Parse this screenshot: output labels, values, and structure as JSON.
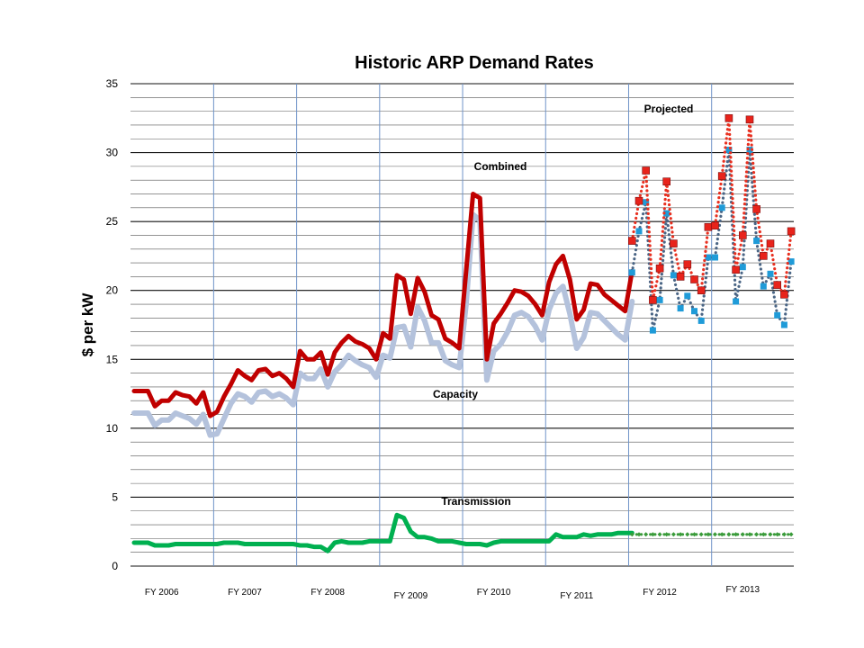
{
  "chart_data": {
    "type": "line",
    "title": "Historic ARP Demand Rates",
    "ylabel": "$ per kW",
    "xlabel": "",
    "ylim": [
      0,
      35
    ],
    "yticks": [
      0,
      5,
      10,
      15,
      20,
      25,
      30,
      35
    ],
    "grid": true,
    "fiscal_years": [
      "FY 2006",
      "FY 2007",
      "FY 2008",
      "FY 2009",
      "FY 2010",
      "FY 2011",
      "FY 2012",
      "FY 2013"
    ],
    "annotations": [
      "Combined",
      "Capacity",
      "Transmission",
      "Projected"
    ],
    "colors": {
      "combined": "#c00000",
      "capacity": "#b4c2dc",
      "transmission": "#00b050",
      "projected_combined": "#e8231b",
      "projected_capacity": "#1f9bd8",
      "projected_transmission": "#3a9b3a",
      "projected_combined_line": "#e83020",
      "projected_capacity_line": "#4a6585",
      "fy_lines": "#6f93c8",
      "grid": "#111111"
    },
    "series": [
      {
        "name": "Combined",
        "style": "solid",
        "x_start": 0,
        "values": [
          12.7,
          12.7,
          12.7,
          11.6,
          12.0,
          12.0,
          12.6,
          12.4,
          12.3,
          11.8,
          12.6,
          10.9,
          11.2,
          12.3,
          13.2,
          14.2,
          13.8,
          13.5,
          14.2,
          14.3,
          13.8,
          14.0,
          13.6,
          13.0,
          15.6,
          15.0,
          15.0,
          15.5,
          13.9,
          15.5,
          16.2,
          16.7,
          16.3,
          16.1,
          15.8,
          15.0,
          16.9,
          16.5,
          21.1,
          20.8,
          18.3,
          20.9,
          19.9,
          18.2,
          17.9,
          16.5,
          16.2,
          15.8,
          21.4,
          27.0,
          26.7,
          15.0,
          17.6,
          18.3,
          19.1,
          20.0,
          19.9,
          19.6,
          19.0,
          18.2,
          20.6,
          21.9,
          22.5,
          20.8,
          17.9,
          18.6,
          20.5,
          20.4,
          19.7,
          19.3,
          18.9,
          18.5,
          21.4
        ]
      },
      {
        "name": "Capacity",
        "style": "solid",
        "x_start": 0,
        "values": [
          11.1,
          11.1,
          11.1,
          10.2,
          10.6,
          10.6,
          11.1,
          10.9,
          10.7,
          10.3,
          11.0,
          9.5,
          9.6,
          10.7,
          11.8,
          12.5,
          12.3,
          11.9,
          12.6,
          12.7,
          12.3,
          12.5,
          12.2,
          11.7,
          14.0,
          13.6,
          13.6,
          14.3,
          13.0,
          14.1,
          14.6,
          15.3,
          14.9,
          14.6,
          14.4,
          13.7,
          15.3,
          15.1,
          17.3,
          17.4,
          15.9,
          18.8,
          17.8,
          16.2,
          16.2,
          14.9,
          14.6,
          14.4,
          19.0,
          25.5,
          25.1,
          13.5,
          15.6,
          16.1,
          17.0,
          18.2,
          18.4,
          18.1,
          17.4,
          16.4,
          18.6,
          19.8,
          20.3,
          18.3,
          15.8,
          16.6,
          18.4,
          18.3,
          17.8,
          17.3,
          16.8,
          16.4,
          19.2
        ]
      },
      {
        "name": "Transmission",
        "style": "solid",
        "x_start": 0,
        "values": [
          1.7,
          1.7,
          1.7,
          1.5,
          1.5,
          1.5,
          1.6,
          1.6,
          1.6,
          1.6,
          1.6,
          1.6,
          1.6,
          1.7,
          1.7,
          1.7,
          1.6,
          1.6,
          1.6,
          1.6,
          1.6,
          1.6,
          1.6,
          1.6,
          1.5,
          1.5,
          1.4,
          1.4,
          1.1,
          1.7,
          1.8,
          1.7,
          1.7,
          1.7,
          1.8,
          1.8,
          1.8,
          1.8,
          3.7,
          3.5,
          2.5,
          2.1,
          2.1,
          2.0,
          1.8,
          1.8,
          1.8,
          1.7,
          1.6,
          1.6,
          1.6,
          1.5,
          1.7,
          1.8,
          1.8,
          1.8,
          1.8,
          1.8,
          1.8,
          1.8,
          1.8,
          2.3,
          2.1,
          2.1,
          2.1,
          2.3,
          2.2,
          2.3,
          2.3,
          2.3,
          2.4,
          2.4,
          2.4
        ]
      },
      {
        "name": "Projected Combined",
        "style": "dotted-markers",
        "x_start": 72,
        "values": [
          23.6,
          26.5,
          28.7,
          19.3,
          21.6,
          27.9,
          23.4,
          21.0,
          21.9,
          20.8,
          20.0,
          24.6,
          24.7,
          28.3,
          32.5,
          21.5,
          24.0,
          32.4,
          25.9,
          22.5,
          23.4,
          20.4,
          19.7,
          24.3
        ]
      },
      {
        "name": "Projected Capacity",
        "style": "dotted-markers",
        "x_start": 72,
        "values": [
          21.3,
          24.3,
          26.4,
          17.1,
          19.3,
          25.6,
          21.1,
          18.7,
          19.6,
          18.5,
          17.8,
          22.4,
          22.4,
          26.0,
          30.2,
          19.2,
          21.7,
          30.2,
          23.6,
          20.3,
          21.2,
          18.2,
          17.5,
          22.1
        ]
      },
      {
        "name": "Projected Transmission",
        "style": "dotted-markers",
        "x_start": 72,
        "values": [
          2.3,
          2.3,
          2.3,
          2.3,
          2.3,
          2.3,
          2.3,
          2.3,
          2.3,
          2.3,
          2.3,
          2.3,
          2.3,
          2.3,
          2.3,
          2.3,
          2.3,
          2.3,
          2.3,
          2.3,
          2.3,
          2.3,
          2.3,
          2.3
        ]
      }
    ]
  }
}
